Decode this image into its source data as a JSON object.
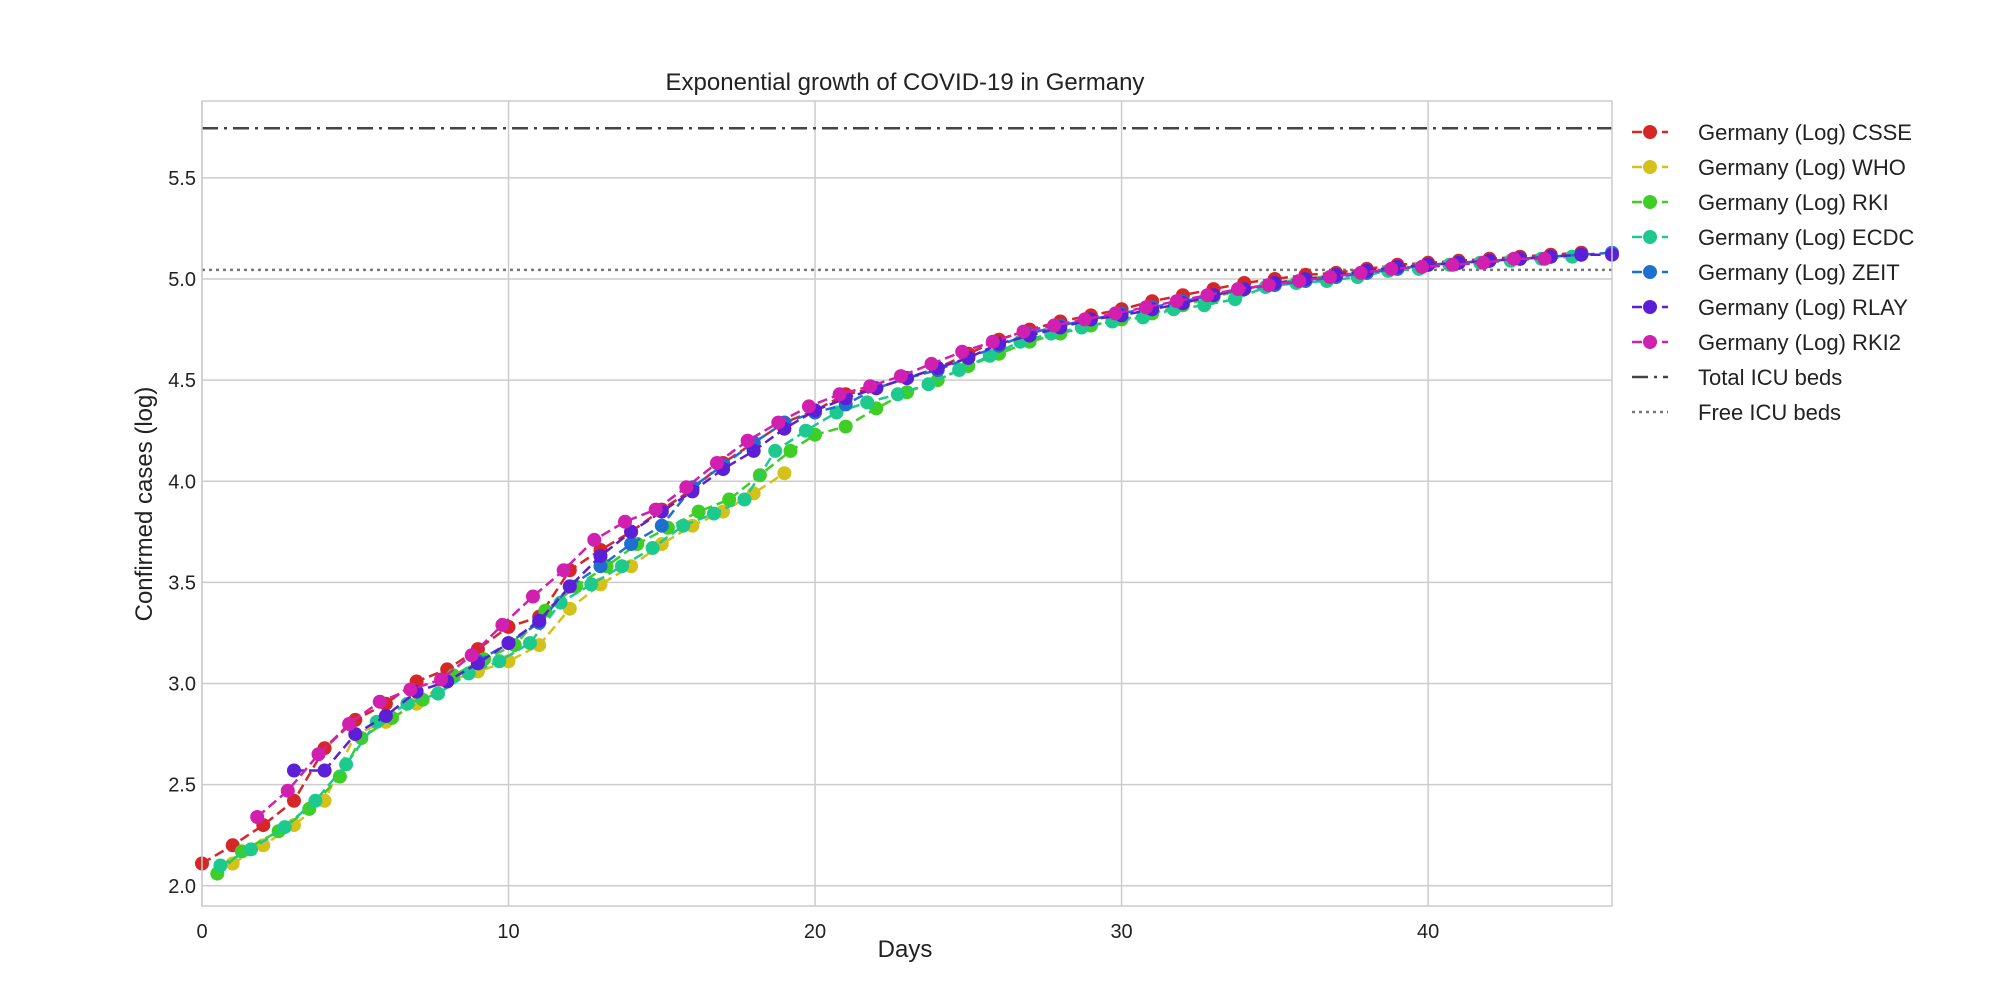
{
  "chart_data": {
    "type": "line",
    "title": "Exponential growth of COVID-19 in Germany",
    "xlabel": "Days",
    "ylabel": "Confirmed cases (log)",
    "xlim": [
      0,
      46
    ],
    "ylim": [
      1.9,
      5.88
    ],
    "xticks": [
      0,
      10,
      20,
      30,
      40
    ],
    "yticks": [
      2.0,
      2.5,
      3.0,
      3.5,
      4.0,
      4.5,
      5.0,
      5.5
    ],
    "grid": true,
    "legend_position": "outside-right",
    "hlines": [
      {
        "name": "Total ICU beds",
        "y": 5.745,
        "style": "dashdot",
        "color": "#444444"
      },
      {
        "name": "Free ICU beds",
        "y": 5.045,
        "style": "dotted",
        "color": "#777777"
      }
    ],
    "series": [
      {
        "name": "Germany (Log) CSSE",
        "color": "#d62626",
        "x": [
          0,
          1,
          2,
          3,
          4,
          5,
          6,
          7,
          8,
          9,
          10,
          11,
          12,
          13,
          14,
          15,
          16,
          17,
          18,
          19,
          20,
          21,
          22,
          23,
          24,
          25,
          26,
          27,
          28,
          29,
          30,
          31,
          32,
          33,
          34,
          35,
          36,
          37,
          38,
          39,
          40,
          41,
          42,
          43,
          44,
          45
        ],
        "y": [
          2.11,
          2.2,
          2.3,
          2.42,
          2.68,
          2.82,
          2.9,
          3.01,
          3.07,
          3.17,
          3.28,
          3.33,
          3.56,
          3.66,
          3.75,
          3.86,
          3.96,
          4.09,
          4.19,
          4.29,
          4.35,
          4.43,
          4.46,
          4.51,
          4.56,
          4.63,
          4.7,
          4.75,
          4.79,
          4.82,
          4.85,
          4.89,
          4.92,
          4.95,
          4.98,
          5.0,
          5.02,
          5.03,
          5.05,
          5.07,
          5.08,
          5.09,
          5.1,
          5.11,
          5.12,
          5.13
        ]
      },
      {
        "name": "Germany (Log) WHO",
        "color": "#d4c21a",
        "x": [
          1,
          2,
          3,
          4,
          5,
          6,
          7,
          8,
          9,
          10,
          11,
          12,
          13,
          14,
          15,
          16,
          17,
          18,
          19
        ],
        "y": [
          2.11,
          2.2,
          2.3,
          2.42,
          2.75,
          2.81,
          2.9,
          3.01,
          3.06,
          3.11,
          3.19,
          3.37,
          3.49,
          3.58,
          3.69,
          3.78,
          3.85,
          3.94,
          4.04
        ]
      },
      {
        "name": "Germany (Log) RKI",
        "color": "#3fce26",
        "x": [
          0.5,
          1.3,
          2.5,
          3.5,
          4.5,
          5.2,
          6.2,
          7.2,
          8.2,
          9.2,
          10.2,
          11.2,
          12.2,
          13.2,
          14.2,
          15.2,
          16.2,
          17.2,
          18.2,
          19.2,
          20,
          21,
          22,
          23,
          24,
          25,
          26,
          27,
          28,
          29,
          30,
          31,
          32,
          33,
          34,
          35,
          36,
          37,
          38,
          39,
          40,
          41,
          42,
          43,
          44,
          45
        ],
        "y": [
          2.06,
          2.17,
          2.27,
          2.38,
          2.54,
          2.73,
          2.83,
          2.92,
          3.04,
          3.12,
          3.19,
          3.36,
          3.48,
          3.58,
          3.69,
          3.77,
          3.85,
          3.91,
          4.03,
          4.15,
          4.23,
          4.27,
          4.36,
          4.44,
          4.5,
          4.57,
          4.63,
          4.69,
          4.73,
          4.77,
          4.8,
          4.83,
          4.87,
          4.91,
          4.95,
          4.98,
          5.0,
          5.02,
          5.03,
          5.05,
          5.07,
          5.08,
          5.09,
          5.1,
          5.11,
          5.12
        ]
      },
      {
        "name": "Germany (Log) ECDC",
        "color": "#1ec98d",
        "x": [
          0.6,
          1.6,
          2.7,
          3.7,
          4.7,
          5.7,
          6.7,
          7.7,
          8.7,
          9.7,
          10.7,
          11.7,
          12.7,
          13.7,
          14.7,
          15.7,
          16.7,
          17.7,
          18.7,
          19.7,
          20.7,
          21.7,
          22.7,
          23.7,
          24.7,
          25.7,
          26.7,
          27.7,
          28.7,
          29.7,
          30.7,
          31.7,
          32.7,
          33.7,
          34.7,
          35.7,
          36.7,
          37.7,
          38.7,
          39.7,
          40.7,
          41.7,
          42.7,
          43.7,
          44.7
        ],
        "y": [
          2.1,
          2.18,
          2.29,
          2.42,
          2.6,
          2.81,
          2.9,
          2.95,
          3.05,
          3.11,
          3.2,
          3.4,
          3.49,
          3.58,
          3.67,
          3.78,
          3.84,
          3.91,
          4.15,
          4.25,
          4.34,
          4.39,
          4.43,
          4.48,
          4.55,
          4.62,
          4.69,
          4.73,
          4.76,
          4.79,
          4.81,
          4.85,
          4.87,
          4.9,
          4.96,
          4.98,
          4.99,
          5.01,
          5.04,
          5.05,
          5.07,
          5.08,
          5.09,
          5.1,
          5.11
        ]
      },
      {
        "name": "Germany (Log) ZEIT",
        "color": "#1f6fd1",
        "x": [
          9,
          10,
          11,
          12,
          13,
          14,
          15,
          16,
          17,
          18,
          19,
          20,
          21,
          22,
          23,
          24,
          25,
          26,
          27,
          28,
          29,
          30,
          31,
          32,
          33,
          34,
          35,
          36,
          37,
          38,
          39,
          40,
          41,
          42,
          43,
          44,
          45,
          46
        ],
        "y": [
          3.11,
          3.2,
          3.3,
          3.48,
          3.58,
          3.69,
          3.78,
          3.97,
          4.08,
          4.19,
          4.29,
          4.34,
          4.38,
          4.46,
          4.51,
          4.55,
          4.61,
          4.67,
          4.73,
          4.77,
          4.8,
          4.83,
          4.86,
          4.89,
          4.92,
          4.95,
          4.97,
          4.99,
          5.01,
          5.03,
          5.05,
          5.07,
          5.08,
          5.09,
          5.1,
          5.11,
          5.12,
          5.13
        ]
      },
      {
        "name": "Germany (Log) RLAY",
        "color": "#5a1fd6",
        "x": [
          3,
          4,
          5,
          6,
          7,
          8,
          9,
          10,
          11,
          12,
          13,
          14,
          15,
          16,
          17,
          18,
          19,
          20,
          21,
          22,
          23,
          24,
          25,
          26,
          27,
          28,
          29,
          30,
          31,
          32,
          33,
          34,
          35,
          36,
          37,
          38,
          39,
          40,
          41,
          42,
          43,
          44,
          45,
          46
        ],
        "y": [
          2.57,
          2.57,
          2.75,
          2.84,
          2.96,
          3.01,
          3.1,
          3.2,
          3.31,
          3.48,
          3.63,
          3.75,
          3.85,
          3.95,
          4.06,
          4.15,
          4.26,
          4.35,
          4.41,
          4.46,
          4.51,
          4.56,
          4.61,
          4.68,
          4.72,
          4.76,
          4.8,
          4.82,
          4.85,
          4.88,
          4.92,
          4.95,
          4.98,
          5.0,
          5.02,
          5.04,
          5.06,
          5.07,
          5.08,
          5.09,
          5.1,
          5.11,
          5.12,
          5.12
        ]
      },
      {
        "name": "Germany (Log) RKI2",
        "color": "#d11fb0",
        "x": [
          1.8,
          2.8,
          3.8,
          4.8,
          5.8,
          6.8,
          7.8,
          8.8,
          9.8,
          10.8,
          11.8,
          12.8,
          13.8,
          14.8,
          15.8,
          16.8,
          17.8,
          18.8,
          19.8,
          20.8,
          21.8,
          22.8,
          23.8,
          24.8,
          25.8,
          26.8,
          27.8,
          28.8,
          29.8,
          30.8,
          31.8,
          32.8,
          33.8,
          34.8,
          35.8,
          36.8,
          37.8,
          38.8,
          39.8,
          40.8,
          41.8,
          42.8,
          43.8
        ],
        "y": [
          2.34,
          2.47,
          2.65,
          2.8,
          2.91,
          2.97,
          3.02,
          3.14,
          3.29,
          3.43,
          3.56,
          3.71,
          3.8,
          3.86,
          3.97,
          4.09,
          4.2,
          4.29,
          4.37,
          4.43,
          4.47,
          4.52,
          4.58,
          4.64,
          4.69,
          4.74,
          4.77,
          4.8,
          4.83,
          4.86,
          4.89,
          4.92,
          4.95,
          4.97,
          4.99,
          5.01,
          5.03,
          5.05,
          5.06,
          5.07,
          5.08,
          5.1,
          5.1
        ]
      }
    ]
  }
}
